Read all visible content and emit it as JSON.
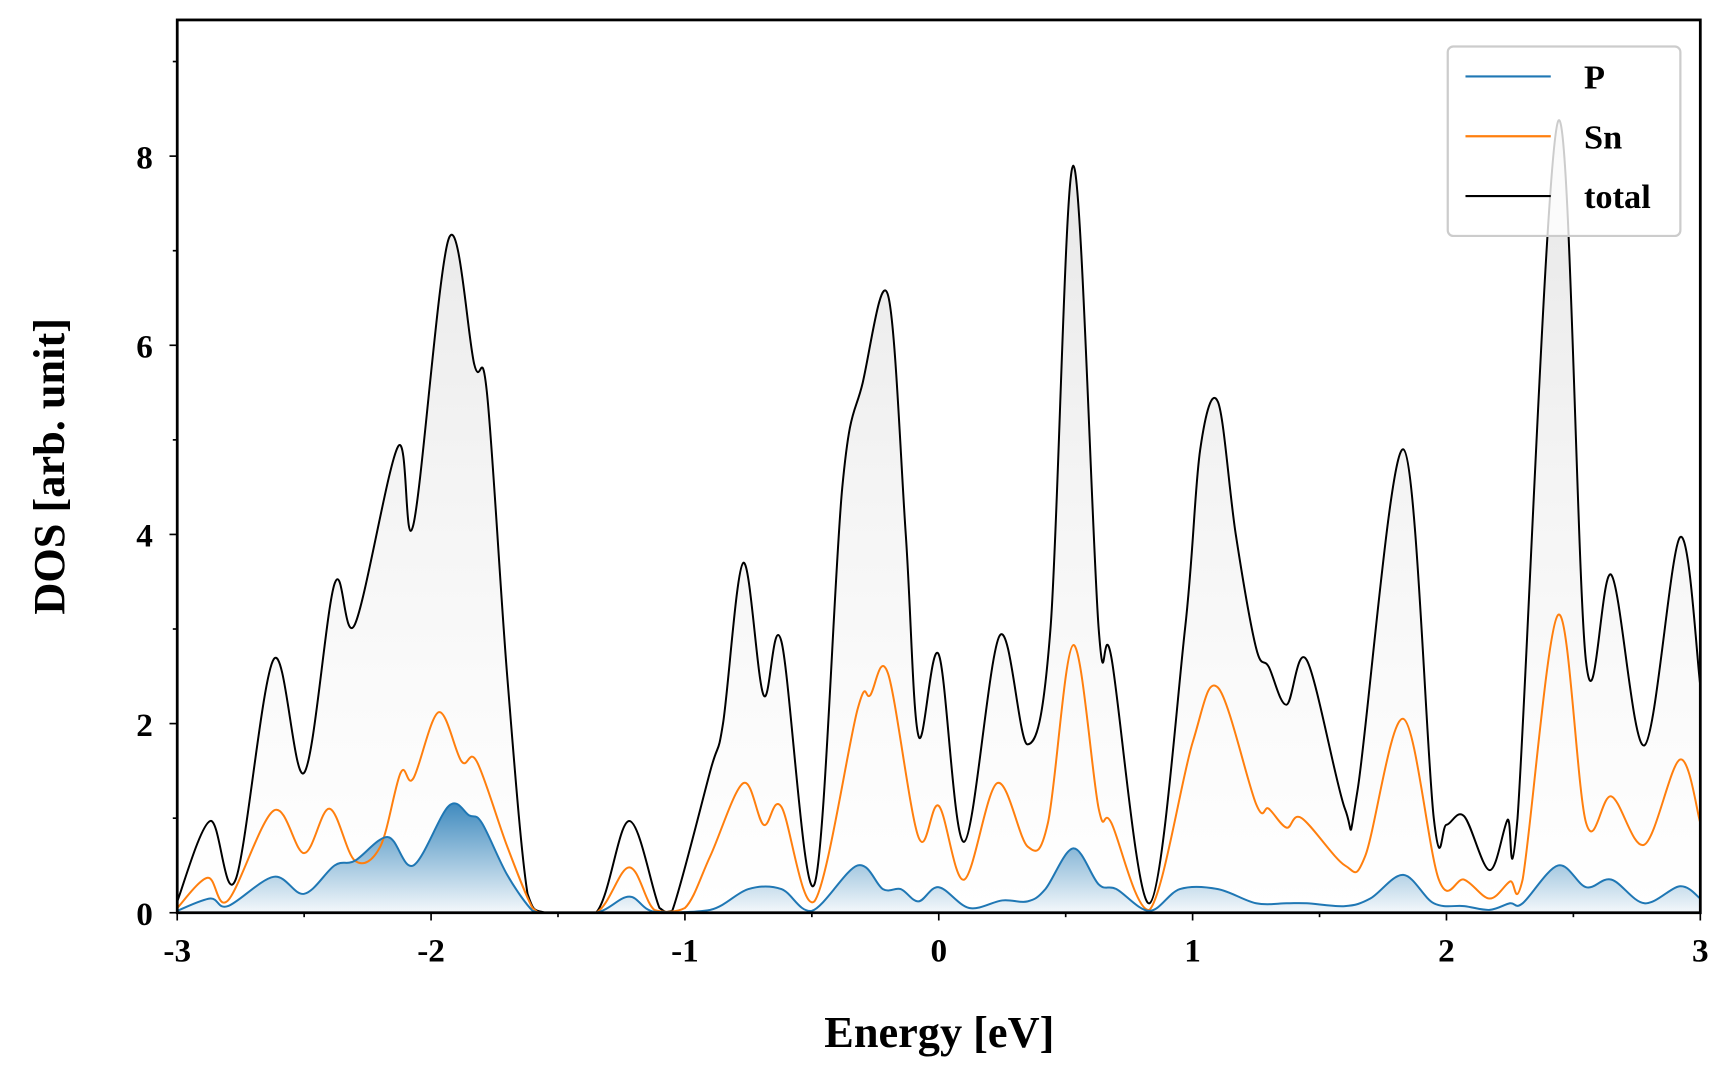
{
  "chart_data": {
    "type": "line",
    "title": "",
    "xlabel": "Energy [eV]",
    "ylabel": "DOS [arb. unit]",
    "xlim": [
      -3,
      3
    ],
    "ylim": [
      0,
      9.44
    ],
    "xticks": [
      -3,
      -2,
      -1,
      0,
      1,
      2,
      3
    ],
    "xtick_labels": [
      "-3",
      "-2",
      "-1",
      "0",
      "1",
      "2",
      "3"
    ],
    "yticks": [
      0,
      2,
      4,
      6,
      8
    ],
    "ytick_labels": [
      "0",
      "2",
      "4",
      "6",
      "8"
    ],
    "grid": false,
    "legend_position": "top-right",
    "series": [
      {
        "name": "P",
        "color": "#1f77b4",
        "filled": true,
        "x": [
          -3,
          -2.87,
          -2.8,
          -2.62,
          -2.5,
          -2.38,
          -2.3,
          -2.17,
          -2.07,
          -1.93,
          -1.85,
          -1.8,
          -1.7,
          -1.6,
          -1.55,
          -1.35,
          -1.22,
          -1.12,
          -0.9,
          -0.75,
          -0.62,
          -0.5,
          -0.32,
          -0.22,
          -0.15,
          -0.08,
          0,
          0.12,
          0.25,
          0.35,
          0.42,
          0.53,
          0.63,
          0.7,
          0.83,
          0.95,
          1.1,
          1.25,
          1.37,
          1.45,
          1.6,
          1.7,
          1.83,
          1.95,
          2.07,
          2.17,
          2.25,
          2.3,
          2.44,
          2.55,
          2.65,
          2.78,
          2.92,
          3
        ],
        "y": [
          0.02,
          0.15,
          0.07,
          0.38,
          0.2,
          0.5,
          0.55,
          0.8,
          0.5,
          1.13,
          1.03,
          0.95,
          0.4,
          0.02,
          0,
          0,
          0.17,
          0.01,
          0.03,
          0.25,
          0.25,
          0.02,
          0.5,
          0.25,
          0.25,
          0.12,
          0.27,
          0.05,
          0.13,
          0.12,
          0.25,
          0.68,
          0.3,
          0.25,
          0.02,
          0.25,
          0.25,
          0.1,
          0.1,
          0.1,
          0.07,
          0.15,
          0.4,
          0.1,
          0.07,
          0.03,
          0.1,
          0.1,
          0.5,
          0.27,
          0.35,
          0.1,
          0.28,
          0.15
        ]
      },
      {
        "name": "Sn",
        "color": "#ff7f0e",
        "filled": false,
        "x": [
          -3,
          -2.88,
          -2.8,
          -2.62,
          -2.5,
          -2.4,
          -2.3,
          -2.2,
          -2.12,
          -2.07,
          -1.97,
          -1.88,
          -1.82,
          -1.7,
          -1.6,
          -1.55,
          -1.35,
          -1.22,
          -1.12,
          -1,
          -0.9,
          -0.77,
          -0.69,
          -0.62,
          -0.49,
          -0.32,
          -0.27,
          -0.2,
          -0.08,
          0,
          0.1,
          0.23,
          0.35,
          0.43,
          0.53,
          0.63,
          0.68,
          0.83,
          1,
          1.1,
          1.25,
          1.3,
          1.37,
          1.43,
          1.6,
          1.68,
          1.83,
          1.97,
          2.07,
          2.17,
          2.25,
          2.3,
          2.44,
          2.55,
          2.65,
          2.78,
          2.92,
          3
        ],
        "y": [
          0.05,
          0.37,
          0.13,
          1.08,
          0.63,
          1.1,
          0.55,
          0.7,
          1.48,
          1.42,
          2.12,
          1.6,
          1.6,
          0.7,
          0.05,
          0,
          0,
          0.48,
          0.03,
          0.05,
          0.6,
          1.37,
          0.93,
          1.12,
          0.12,
          2.15,
          2.3,
          2.53,
          0.8,
          1.13,
          0.35,
          1.37,
          0.7,
          0.95,
          2.83,
          1.1,
          0.95,
          0.03,
          1.8,
          2.38,
          1.15,
          1.1,
          0.9,
          1,
          0.5,
          0.6,
          2.05,
          0.35,
          0.35,
          0.15,
          0.33,
          0.35,
          3.15,
          0.95,
          1.23,
          0.72,
          1.62,
          0.95
        ]
      },
      {
        "name": "total",
        "color": "#000000",
        "filled": true,
        "x": [
          -3,
          -2.87,
          -2.77,
          -2.62,
          -2.5,
          -2.38,
          -2.3,
          -2.13,
          -2.07,
          -1.93,
          -1.83,
          -1.78,
          -1.7,
          -1.62,
          -1.55,
          -1.35,
          -1.22,
          -1.1,
          -1.05,
          -0.9,
          -0.85,
          -0.77,
          -0.69,
          -0.62,
          -0.49,
          -0.38,
          -0.3,
          -0.2,
          -0.13,
          -0.08,
          0,
          0.1,
          0.24,
          0.35,
          0.44,
          0.53,
          0.63,
          0.68,
          0.83,
          0.97,
          1.03,
          1.1,
          1.17,
          1.25,
          1.3,
          1.37,
          1.45,
          1.6,
          1.65,
          1.83,
          1.95,
          2,
          2.07,
          2.17,
          2.24,
          2.28,
          2.44,
          2.55,
          2.65,
          2.78,
          2.92,
          3
        ],
        "y": [
          0.12,
          0.97,
          0.35,
          2.68,
          1.48,
          3.48,
          3.05,
          4.93,
          4.1,
          7.13,
          5.8,
          5.5,
          2.5,
          0.2,
          0,
          0,
          0.97,
          0.05,
          0.02,
          1.5,
          2,
          3.7,
          2.3,
          2.87,
          0.3,
          4.5,
          5.6,
          6.53,
          4,
          1.87,
          2.73,
          0.75,
          2.93,
          1.78,
          3,
          7.9,
          3,
          2.7,
          0.1,
          3,
          4.9,
          5.4,
          4,
          2.8,
          2.6,
          2.2,
          2.67,
          1.1,
          1.3,
          4.9,
          1,
          0.93,
          1.02,
          0.45,
          0.98,
          1,
          8.37,
          2.65,
          3.57,
          1.77,
          3.97,
          2.4
        ]
      }
    ]
  }
}
